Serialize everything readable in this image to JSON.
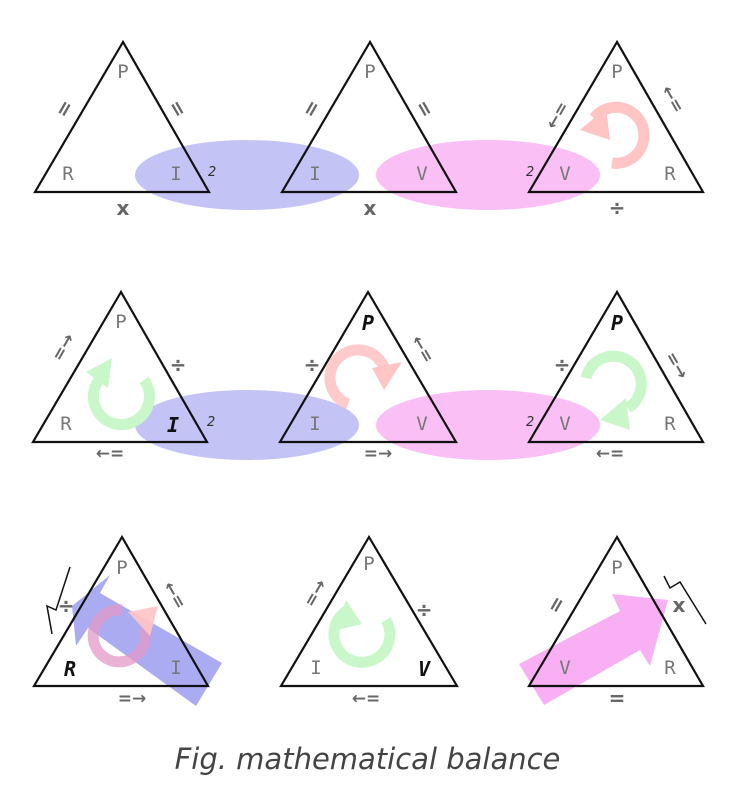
{
  "caption": "Fig. mathematical balance",
  "colors": {
    "current_ellipse": "#bcbcf5",
    "voltage_ellipse": "#f9b9f5",
    "cycle_red": "#ffc4c4",
    "cycle_green": "#c9f7c9",
    "arrow_blue": "#9c9cf0",
    "arrow_pink": "#f7a6f3",
    "text": "#777777"
  },
  "row1": {
    "t1": {
      "top": "P",
      "left": "R",
      "right": "I",
      "right_sup": "2",
      "left_op": "=",
      "right_op": "=",
      "base_op": "x"
    },
    "t2": {
      "top": "P",
      "left": "I",
      "right": "V",
      "left_op": "=",
      "right_op": "=",
      "base_op": "x"
    },
    "t3": {
      "top": "P",
      "left": "V",
      "left_sup": "2",
      "right": "R",
      "left_op": "←=",
      "right_op": "←=",
      "base_op": "÷"
    }
  },
  "row2": {
    "t1": {
      "top": "P",
      "left": "R",
      "right": "I",
      "right_sup": "2",
      "left_op": "=→",
      "right_op": "÷",
      "base_op": "←="
    },
    "t2": {
      "top": "P",
      "left": "I",
      "right": "V",
      "left_op": "÷",
      "right_op": "←=",
      "base_op": "=→"
    },
    "t3": {
      "top": "P",
      "left": "V",
      "left_sup": "2",
      "right": "R",
      "left_op": "÷",
      "right_op": "=→",
      "base_op": "←="
    }
  },
  "row3": {
    "t1": {
      "top": "P",
      "left": "R",
      "right": "I",
      "left_op": "÷",
      "right_op": "←=",
      "base_op": "=→"
    },
    "t2": {
      "top": "P",
      "left": "I",
      "right": "V",
      "left_op": "=→",
      "right_op": "÷",
      "base_op": "←="
    },
    "t3": {
      "top": "P",
      "left": "V",
      "right": "R",
      "left_op": "=",
      "right_op": "x",
      "base_op": "="
    }
  }
}
